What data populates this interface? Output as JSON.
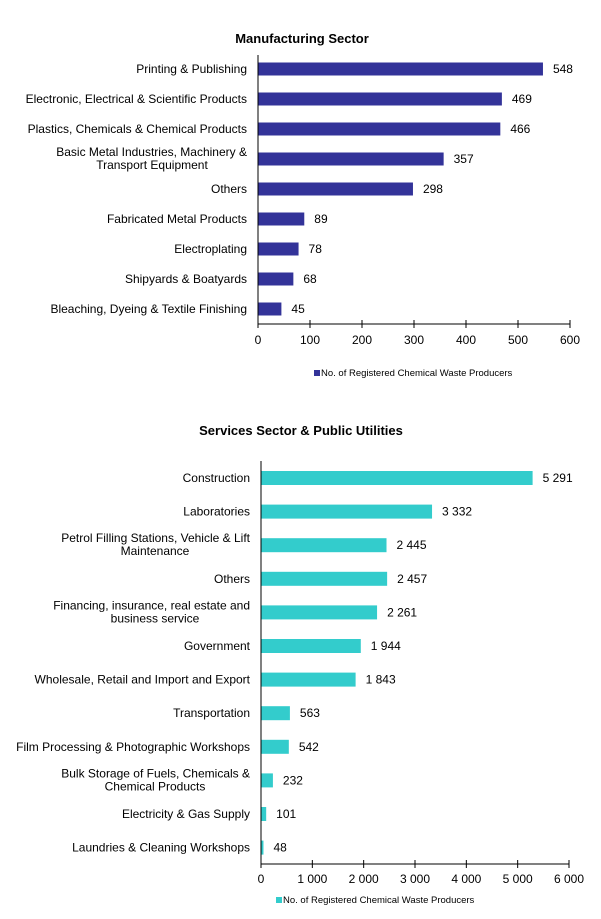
{
  "chart_data": [
    {
      "type": "bar",
      "orientation": "horizontal",
      "title": "Manufacturing Sector",
      "categories": [
        [
          "Printing & Publishing"
        ],
        [
          "Electronic, Electrical & Scientific Products"
        ],
        [
          "Plastics, Chemicals & Chemical Products"
        ],
        [
          "Basic Metal Industries, Machinery &",
          "Transport Equipment"
        ],
        [
          "Others"
        ],
        [
          "Fabricated Metal Products"
        ],
        [
          "Electroplating"
        ],
        [
          "Shipyards & Boatyards"
        ],
        [
          "Bleaching, Dyeing & Textile Finishing"
        ]
      ],
      "series": [
        {
          "name": "No. of Registered Chemical Waste Producers",
          "color": "#333399",
          "values": [
            548,
            469,
            466,
            357,
            298,
            89,
            78,
            68,
            45
          ],
          "data_labels": [
            "548",
            "469",
            "466",
            "357",
            "298",
            "89",
            "78",
            "68",
            "45"
          ]
        }
      ],
      "xlim": [
        0,
        600
      ],
      "ticks": [
        0,
        100,
        200,
        300,
        400,
        500,
        600
      ],
      "tick_labels": [
        "0",
        "100",
        "200",
        "300",
        "400",
        "500",
        "600"
      ],
      "xlabel": "",
      "ylabel": "",
      "grid": false,
      "legend": "bottom"
    },
    {
      "type": "bar",
      "orientation": "horizontal",
      "title": "Services Sector & Public Utilities",
      "categories": [
        [
          "Construction"
        ],
        [
          "Laboratories"
        ],
        [
          "Petrol Filling Stations, Vehicle & Lift",
          "Maintenance"
        ],
        [
          "Others"
        ],
        [
          "Financing, insurance, real estate and",
          "business service"
        ],
        [
          "Government"
        ],
        [
          "Wholesale, Retail and Import and Export"
        ],
        [
          "Transportation"
        ],
        [
          "Film Processing & Photographic Workshops"
        ],
        [
          "Bulk Storage of Fuels, Chemicals &",
          "Chemical Products"
        ],
        [
          "Electricity & Gas Supply"
        ],
        [
          "Laundries & Cleaning Workshops"
        ]
      ],
      "series": [
        {
          "name": "No. of Registered Chemical Waste Producers",
          "color": "#33CCCC",
          "values": [
            5291,
            3332,
            2445,
            2457,
            2261,
            1944,
            1843,
            563,
            542,
            232,
            101,
            48
          ],
          "data_labels": [
            "5 291",
            "3 332",
            "2 445",
            "2 457",
            "2 261",
            "1 944",
            "1 843",
            "563",
            "542",
            "232",
            "101",
            "48"
          ]
        }
      ],
      "xlim": [
        0,
        6000
      ],
      "ticks": [
        0,
        1000,
        2000,
        3000,
        4000,
        5000,
        6000
      ],
      "tick_labels": [
        "0",
        "1 000",
        "2 000",
        "3 000",
        "4 000",
        "5 000",
        "6 000"
      ],
      "xlabel": "",
      "ylabel": "",
      "grid": false,
      "legend": "bottom"
    }
  ]
}
